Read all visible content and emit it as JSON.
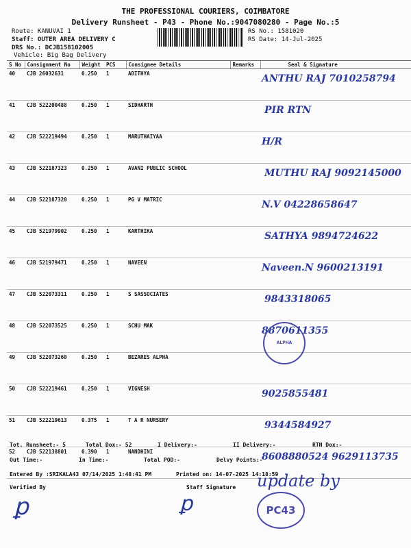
{
  "header": {
    "company": "THE PROFESSIONAL COURIERS, COIMBATORE",
    "title": "Delivery Runsheet - P43 - Phone No.:9047080280 - Page No.:5",
    "route": "Route: KANUVAI 1",
    "staff": "Staff: OUTER AREA DELIVERY C",
    "drs": "DRS No.: DCJB158102005",
    "vehicle": "Vehicle: Big Bag Delivery",
    "rs_no": "RS No.: 1581020",
    "rs_date": "RS Date: 14-Jul-2025"
  },
  "columns": [
    "S No",
    "Consignment No",
    "Weight",
    "PCS",
    "Consignee Details",
    "Remarks",
    "Seal & Signature"
  ],
  "rows": [
    {
      "sno": "40",
      "cn": "CJB 26032631",
      "wt": "0.250",
      "pcs": "1",
      "name": "ADITHYA",
      "hw": "ANTHU RAJ 7010258794"
    },
    {
      "sno": "41",
      "cn": "CJB 522200488",
      "wt": "0.250",
      "pcs": "1",
      "name": "SIDHARTH",
      "hw": "PIR RTN"
    },
    {
      "sno": "42",
      "cn": "CJB 522219494",
      "wt": "0.250",
      "pcs": "1",
      "name": "MARUTHAIYAA",
      "hw": "H/R"
    },
    {
      "sno": "43",
      "cn": "CJB 522187323",
      "wt": "0.250",
      "pcs": "1",
      "name": "AVANI PUBLIC SCHOOL",
      "hw": "MUTHU RAJ 9092145000"
    },
    {
      "sno": "44",
      "cn": "CJB 522187320",
      "wt": "0.250",
      "pcs": "1",
      "name": "PG V MATRIC",
      "hw": "N.V 04228658647"
    },
    {
      "sno": "45",
      "cn": "CJB 521979902",
      "wt": "0.250",
      "pcs": "1",
      "name": "KARTHIKA",
      "hw": "SATHYA 9894724622"
    },
    {
      "sno": "46",
      "cn": "CJB 521979471",
      "wt": "0.250",
      "pcs": "1",
      "name": "NAVEEN",
      "hw": "Naveen.N 9600213191"
    },
    {
      "sno": "47",
      "cn": "CJB 522073311",
      "wt": "0.250",
      "pcs": "1",
      "name": "S SASSOCIATES",
      "hw": "9843318065"
    },
    {
      "sno": "48",
      "cn": "CJB 522073525",
      "wt": "0.250",
      "pcs": "1",
      "name": "SCHU MAK",
      "hw": "8870611355"
    },
    {
      "sno": "49",
      "cn": "CJB 522073260",
      "wt": "0.250",
      "pcs": "1",
      "name": "BEZARES ALPHA",
      "hw": ""
    },
    {
      "sno": "50",
      "cn": "CJB 522219461",
      "wt": "0.250",
      "pcs": "1",
      "name": "VIGNESH",
      "hw": "9025855481"
    },
    {
      "sno": "51",
      "cn": "CJB 522219613",
      "wt": "0.375",
      "pcs": "1",
      "name": "T A R NURSERY",
      "hw": "9344584927"
    },
    {
      "sno": "52",
      "cn": "CJB 522138801",
      "wt": "0.390",
      "pcs": "1",
      "name": "NANDHINI",
      "hw": "8608880524 9629113735"
    }
  ],
  "footer": {
    "tot_runsheet": "Tot. Runsheet:- 5",
    "total_dox": "Total Dox:-   52",
    "i_delivery": "I Delivery:-",
    "ii_delivery": "II Delivery:-",
    "rtn_dox": "RTN Dox:-",
    "out_time": "Out Time:-",
    "in_time": "In Time:-",
    "total_pod": "Total POD:-",
    "delvy_points": "Delvy Points:-",
    "entered_by": "Entered By :SRIKALA43 07/14/2025 1:48:41 PM",
    "printed_on": "Printed on: 14-07-2025 14:18:59",
    "verified_by": "Verified By",
    "staff_signature": "Staff Signature",
    "update_note": "update by",
    "stamp_text": "PC43",
    "seal_text": "ALPHA DRIVES INDIA PVT LTD"
  },
  "colors": {
    "ink": "#2a3a9a"
  }
}
